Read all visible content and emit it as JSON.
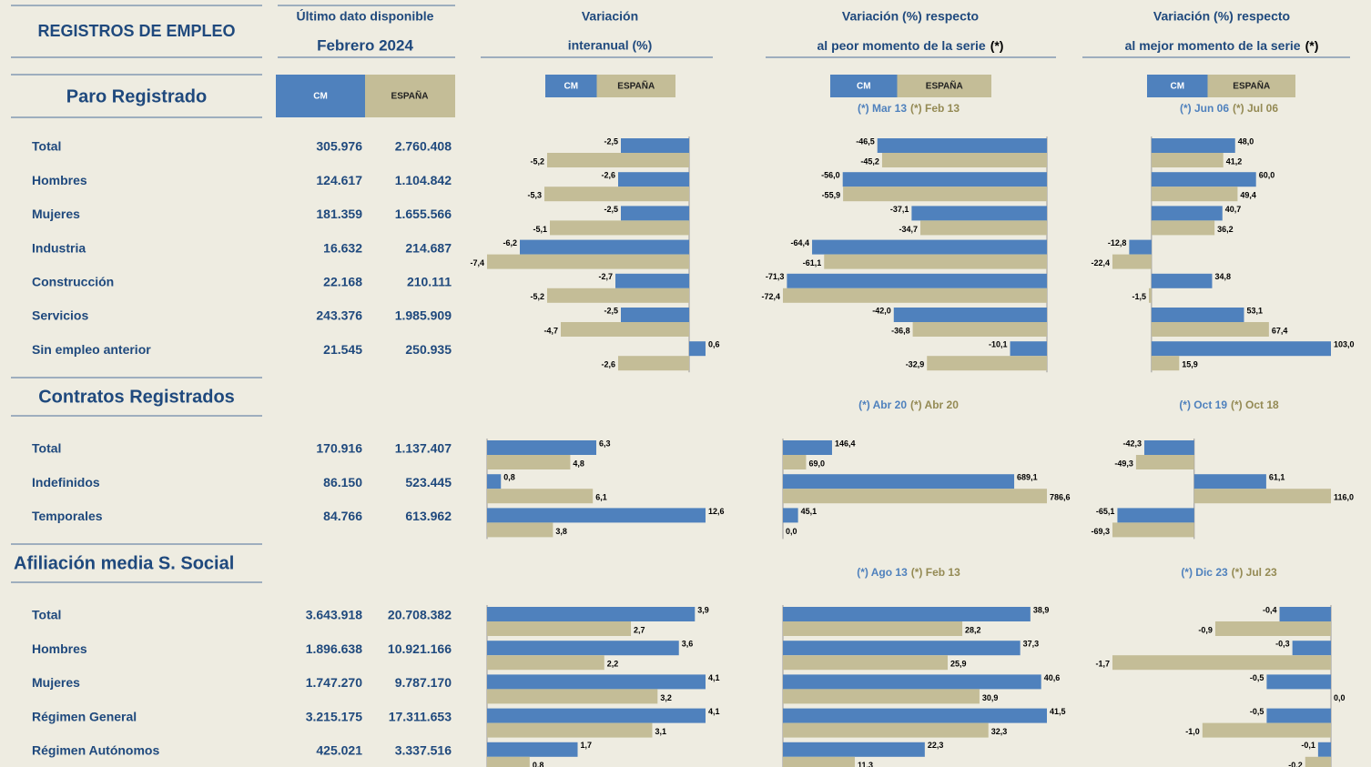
{
  "header": {
    "title": "REGISTROS DE EMPLEO",
    "col_latest": [
      "Último dato disponible",
      "Febrero 2024"
    ],
    "col_interanual": [
      "Variación",
      "interanual (%)"
    ],
    "col_peor": [
      "Variación (%) respecto",
      "al peor momento de la serie",
      "(*)"
    ],
    "col_mejor": [
      "Variación (%) respecto",
      "al mejor momento de la serie",
      "(*)"
    ]
  },
  "legend": {
    "cm": "CM",
    "es": "ESPAÑA"
  },
  "colors": {
    "cm": "#4f81bd",
    "es": "#c4bd97"
  },
  "sections": [
    {
      "title": "Paro Registrado",
      "peor_dates": [
        "(*) Mar 13",
        "(*) Feb 13"
      ],
      "mejor_dates": [
        "(*) Jun 06",
        "(*) Jul 06"
      ],
      "rows": [
        {
          "label": "Total",
          "cm": "305.976",
          "es": "2.760.408",
          "interanual": {
            "values": [
              -2.5,
              -5.2
            ],
            "value_labels": [
              "-2,5",
              "-5,2"
            ]
          },
          "peor": {
            "values": [
              -46.5,
              -45.2
            ],
            "value_labels": [
              "-46,5",
              "-45,2"
            ]
          },
          "mejor": {
            "values": [
              48.0,
              41.2
            ],
            "value_labels": [
              "48,0",
              "41,2"
            ]
          }
        },
        {
          "label": "Hombres",
          "cm": "124.617",
          "es": "1.104.842",
          "interanual": {
            "values": [
              -2.6,
              -5.3
            ],
            "value_labels": [
              "-2,6",
              "-5,3"
            ]
          },
          "peor": {
            "values": [
              -56.0,
              -55.9
            ],
            "value_labels": [
              "-56,0",
              "-55,9"
            ]
          },
          "mejor": {
            "values": [
              60.0,
              49.4
            ],
            "value_labels": [
              "60,0",
              "49,4"
            ]
          }
        },
        {
          "label": "Mujeres",
          "cm": "181.359",
          "es": "1.655.566",
          "interanual": {
            "values": [
              -2.5,
              -5.1
            ],
            "value_labels": [
              "-2,5",
              "-5,1"
            ]
          },
          "peor": {
            "values": [
              -37.1,
              -34.7
            ],
            "value_labels": [
              "-37,1",
              "-34,7"
            ]
          },
          "mejor": {
            "values": [
              40.7,
              36.2
            ],
            "value_labels": [
              "40,7",
              "36,2"
            ]
          }
        },
        {
          "label": "Industria",
          "cm": "16.632",
          "es": "214.687",
          "interanual": {
            "values": [
              -6.2,
              -7.4
            ],
            "value_labels": [
              "-6,2",
              "-7,4"
            ]
          },
          "peor": {
            "values": [
              -64.4,
              -61.1
            ],
            "value_labels": [
              "-64,4",
              "-61,1"
            ]
          },
          "mejor": {
            "values": [
              -12.8,
              -22.4
            ],
            "value_labels": [
              "-12,8",
              "-22,4"
            ]
          }
        },
        {
          "label": "Construcción",
          "cm": "22.168",
          "es": "210.111",
          "interanual": {
            "values": [
              -2.7,
              -5.2
            ],
            "value_labels": [
              "-2,7",
              "-5,2"
            ]
          },
          "peor": {
            "values": [
              -71.3,
              -72.4
            ],
            "value_labels": [
              "-71,3",
              "-72,4"
            ]
          },
          "mejor": {
            "values": [
              34.8,
              -1.5
            ],
            "value_labels": [
              "34,8",
              "-1,5"
            ]
          }
        },
        {
          "label": "Servicios",
          "cm": "243.376",
          "es": "1.985.909",
          "interanual": {
            "values": [
              -2.5,
              -4.7
            ],
            "value_labels": [
              "-2,5",
              "-4,7"
            ]
          },
          "peor": {
            "values": [
              -42.0,
              -36.8
            ],
            "value_labels": [
              "-42,0",
              "-36,8"
            ]
          },
          "mejor": {
            "values": [
              53.1,
              67.4
            ],
            "value_labels": [
              "53,1",
              "67,4"
            ]
          }
        },
        {
          "label": "Sin empleo anterior",
          "cm": "21.545",
          "es": "250.935",
          "interanual": {
            "values": [
              0.6,
              -2.6
            ],
            "value_labels": [
              "0,6",
              "-2,6"
            ]
          },
          "peor": {
            "values": [
              -10.1,
              -32.9
            ],
            "value_labels": [
              "-10,1",
              "-32,9"
            ]
          },
          "mejor": {
            "values": [
              103.0,
              15.9
            ],
            "value_labels": [
              "103,0",
              "15,9"
            ]
          }
        }
      ]
    },
    {
      "title": "Contratos Registrados",
      "peor_dates": [
        "(*) Abr 20",
        "(*) Abr 20"
      ],
      "mejor_dates": [
        "(*) Oct 19",
        "(*) Oct 18"
      ],
      "rows": [
        {
          "label": "Total",
          "cm": "170.916",
          "es": "1.137.407",
          "interanual": {
            "values": [
              6.3,
              4.8
            ],
            "value_labels": [
              "6,3",
              "4,8"
            ]
          },
          "peor": {
            "values": [
              146.4,
              69.0
            ],
            "value_labels": [
              "146,4",
              "69,0"
            ]
          },
          "mejor": {
            "values": [
              -42.3,
              -49.3
            ],
            "value_labels": [
              "-42,3",
              "-49,3"
            ]
          }
        },
        {
          "label": "Indefinidos",
          "cm": "86.150",
          "es": "523.445",
          "interanual": {
            "values": [
              0.8,
              6.1
            ],
            "value_labels": [
              "0,8",
              "6,1"
            ]
          },
          "peor": {
            "values": [
              689.1,
              786.6
            ],
            "value_labels": [
              "689,1",
              "786,6"
            ]
          },
          "mejor": {
            "values": [
              61.1,
              116.0
            ],
            "value_labels": [
              "61,1",
              "116,0"
            ]
          }
        },
        {
          "label": "Temporales",
          "cm": "84.766",
          "es": "613.962",
          "interanual": {
            "values": [
              12.6,
              3.8
            ],
            "value_labels": [
              "12,6",
              "3,8"
            ]
          },
          "peor": {
            "values": [
              45.1,
              0.0
            ],
            "value_labels": [
              "45,1",
              "0,0"
            ]
          },
          "mejor": {
            "values": [
              -65.1,
              -69.3
            ],
            "value_labels": [
              "-65,1",
              "-69,3"
            ]
          }
        }
      ]
    },
    {
      "title": "Afiliación media S. Social",
      "peor_dates": [
        "(*) Ago 13",
        "(*) Feb 13"
      ],
      "mejor_dates": [
        "(*) Dic 23",
        "(*) Jul 23"
      ],
      "rows": [
        {
          "label": "Total",
          "cm": "3.643.918",
          "es": "20.708.382",
          "interanual": {
            "values": [
              3.9,
              2.7
            ],
            "value_labels": [
              "3,9",
              "2,7"
            ]
          },
          "peor": {
            "values": [
              38.9,
              28.2
            ],
            "value_labels": [
              "38,9",
              "28,2"
            ]
          },
          "mejor": {
            "values": [
              -0.4,
              -0.9
            ],
            "value_labels": [
              "-0,4",
              "-0,9"
            ]
          }
        },
        {
          "label": "Hombres",
          "cm": "1.896.638",
          "es": "10.921.166",
          "interanual": {
            "values": [
              3.6,
              2.2
            ],
            "value_labels": [
              "3,6",
              "2,2"
            ]
          },
          "peor": {
            "values": [
              37.3,
              25.9
            ],
            "value_labels": [
              "37,3",
              "25,9"
            ]
          },
          "mejor": {
            "values": [
              -0.3,
              -1.7
            ],
            "value_labels": [
              "-0,3",
              "-1,7"
            ]
          }
        },
        {
          "label": "Mujeres",
          "cm": "1.747.270",
          "es": "9.787.170",
          "interanual": {
            "values": [
              4.1,
              3.2
            ],
            "value_labels": [
              "4,1",
              "3,2"
            ]
          },
          "peor": {
            "values": [
              40.6,
              30.9
            ],
            "value_labels": [
              "40,6",
              "30,9"
            ]
          },
          "mejor": {
            "values": [
              -0.5,
              0.0
            ],
            "value_labels": [
              "-0,5",
              "0,0"
            ]
          }
        },
        {
          "label": "Régimen General",
          "cm": "3.215.175",
          "es": "17.311.653",
          "interanual": {
            "values": [
              4.1,
              3.1
            ],
            "value_labels": [
              "4,1",
              "3,1"
            ]
          },
          "peor": {
            "values": [
              41.5,
              32.3
            ],
            "value_labels": [
              "41,5",
              "32,3"
            ]
          },
          "mejor": {
            "values": [
              -0.5,
              -1.0
            ],
            "value_labels": [
              "-0,5",
              "-1,0"
            ]
          }
        },
        {
          "label": "Régimen Autónomos",
          "cm": "425.021",
          "es": "3.337.516",
          "interanual": {
            "values": [
              1.7,
              0.8
            ],
            "value_labels": [
              "1,7",
              "0,8"
            ]
          },
          "peor": {
            "values": [
              22.3,
              11.3
            ],
            "value_labels": [
              "22,3",
              "11,3"
            ]
          },
          "mejor": {
            "values": [
              -0.1,
              -0.2
            ],
            "value_labels": [
              "-0,1",
              "-0,2"
            ]
          }
        }
      ]
    }
  ]
}
